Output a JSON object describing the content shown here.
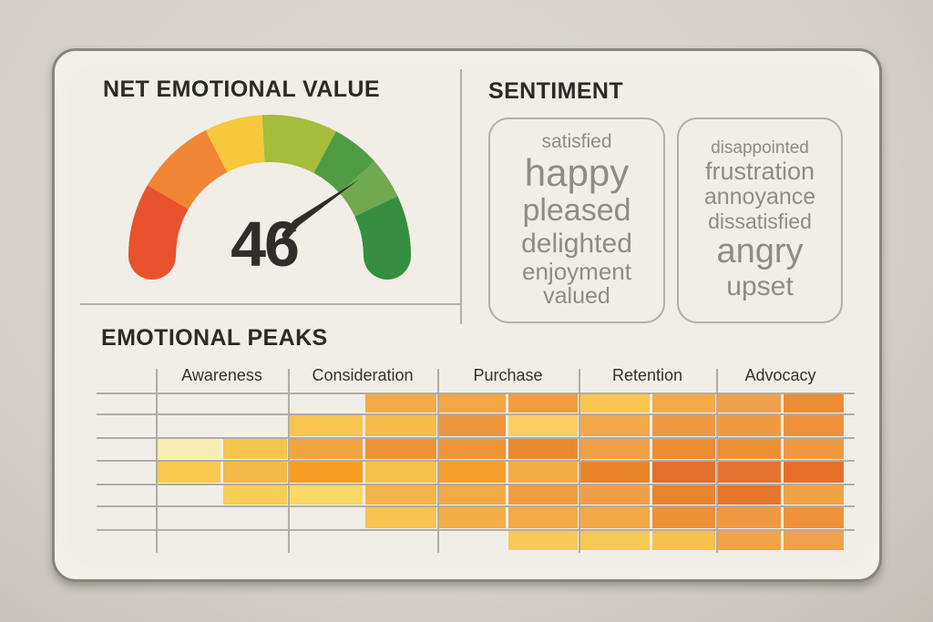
{
  "gauge_panel": {
    "title": "NET EMOTIONAL VALUE",
    "value": "46"
  },
  "sentiment_panel": {
    "title": "SENTIMENT",
    "positive_words": [
      {
        "text": "satisfied",
        "size": 21
      },
      {
        "text": "happy",
        "size": 42
      },
      {
        "text": "pleased",
        "size": 34
      },
      {
        "text": "delighted",
        "size": 30
      },
      {
        "text": "enjoyment",
        "size": 26
      },
      {
        "text": "valued",
        "size": 25
      }
    ],
    "negative_words": [
      {
        "text": "disappointed",
        "size": 19
      },
      {
        "text": "frustration",
        "size": 27
      },
      {
        "text": "annoyance",
        "size": 25
      },
      {
        "text": "dissatisfied",
        "size": 23
      },
      {
        "text": "angry",
        "size": 38
      },
      {
        "text": "upset",
        "size": 30
      }
    ]
  },
  "heatmap_panel": {
    "title": "EMOTIONAL PEAKS"
  },
  "chart_data": [
    {
      "type": "gauge",
      "title": "NET EMOTIONAL VALUE",
      "value": 46,
      "range": [
        0,
        100
      ],
      "needle_angle_deg": 41,
      "segments": [
        {
          "name": "red",
          "color": "#e8522c",
          "start_deg": 180,
          "end_deg": 150
        },
        {
          "name": "orange",
          "color": "#f08534",
          "start_deg": 150,
          "end_deg": 117
        },
        {
          "name": "yellow",
          "color": "#f7c83c",
          "start_deg": 117,
          "end_deg": 93
        },
        {
          "name": "yellow-green",
          "color": "#a4bd3d",
          "start_deg": 93,
          "end_deg": 62
        },
        {
          "name": "green",
          "color": "#509c45",
          "start_deg": 62,
          "end_deg": 42
        },
        {
          "name": "light-green",
          "color": "#70a94f",
          "start_deg": 42,
          "end_deg": 25
        },
        {
          "name": "dark-green",
          "color": "#358f3e",
          "start_deg": 25,
          "end_deg": 0
        }
      ],
      "needle_color": "#2e2d29"
    },
    {
      "type": "heatmap",
      "title": "EMOTIONAL PEAKS",
      "columns": [
        "Awareness",
        "Consideration",
        "Purchase",
        "Retention",
        "Advocacy"
      ],
      "sub_columns_per_stage": 2,
      "rows": 7,
      "legend": "cell fill colors sampled from image; null = empty cell",
      "cells": [
        [
          null,
          null,
          null,
          "#f3ab45",
          "#f3a644",
          "#f19c3e",
          "#f8c54f",
          "#f3aa47",
          "#eda14e",
          "#ec8d33"
        ],
        [
          null,
          null,
          "#f8c64f",
          "#f6ba49",
          "#ec953b",
          "#f9cd5f",
          "#f2a848",
          "#ef9842",
          "#f09a40",
          "#ee9139"
        ],
        [
          "#f8ecb4",
          "#f7c54e",
          "#f2a440",
          "#ed9336",
          "#ee9537",
          "#ea8a30",
          "#ef9f44",
          "#ec8c33",
          "#ed9034",
          "#ee9942"
        ],
        [
          "#f8c84f",
          "#f4b849",
          "#f69d22",
          "#f6c14b",
          "#f59f2c",
          "#f3ad46",
          "#e8832c",
          "#e2702b",
          "#e47230",
          "#e66f28"
        ],
        [
          null,
          "#f7cd58",
          "#f9d868",
          "#f4b348",
          "#f2a946",
          "#f09c40",
          "#ef9e47",
          "#e8842e",
          "#e5762c",
          "#f0a145"
        ],
        [
          null,
          null,
          null,
          "#f7c452",
          "#f4ae45",
          "#f3a945",
          "#f2a846",
          "#ee8f36",
          "#ef9840",
          "#ee9139"
        ],
        [
          null,
          null,
          null,
          null,
          null,
          "#f8ca55",
          "#f8c854",
          "#f7c14e",
          "#f0a349",
          "#efa24b"
        ]
      ]
    },
    {
      "type": "word-list",
      "title": "SENTIMENT",
      "positive": [
        "satisfied",
        "happy",
        "pleased",
        "delighted",
        "enjoyment",
        "valued"
      ],
      "negative": [
        "disappointed",
        "frustration",
        "annoyance",
        "dissatisfied",
        "angry",
        "upset"
      ]
    }
  ]
}
